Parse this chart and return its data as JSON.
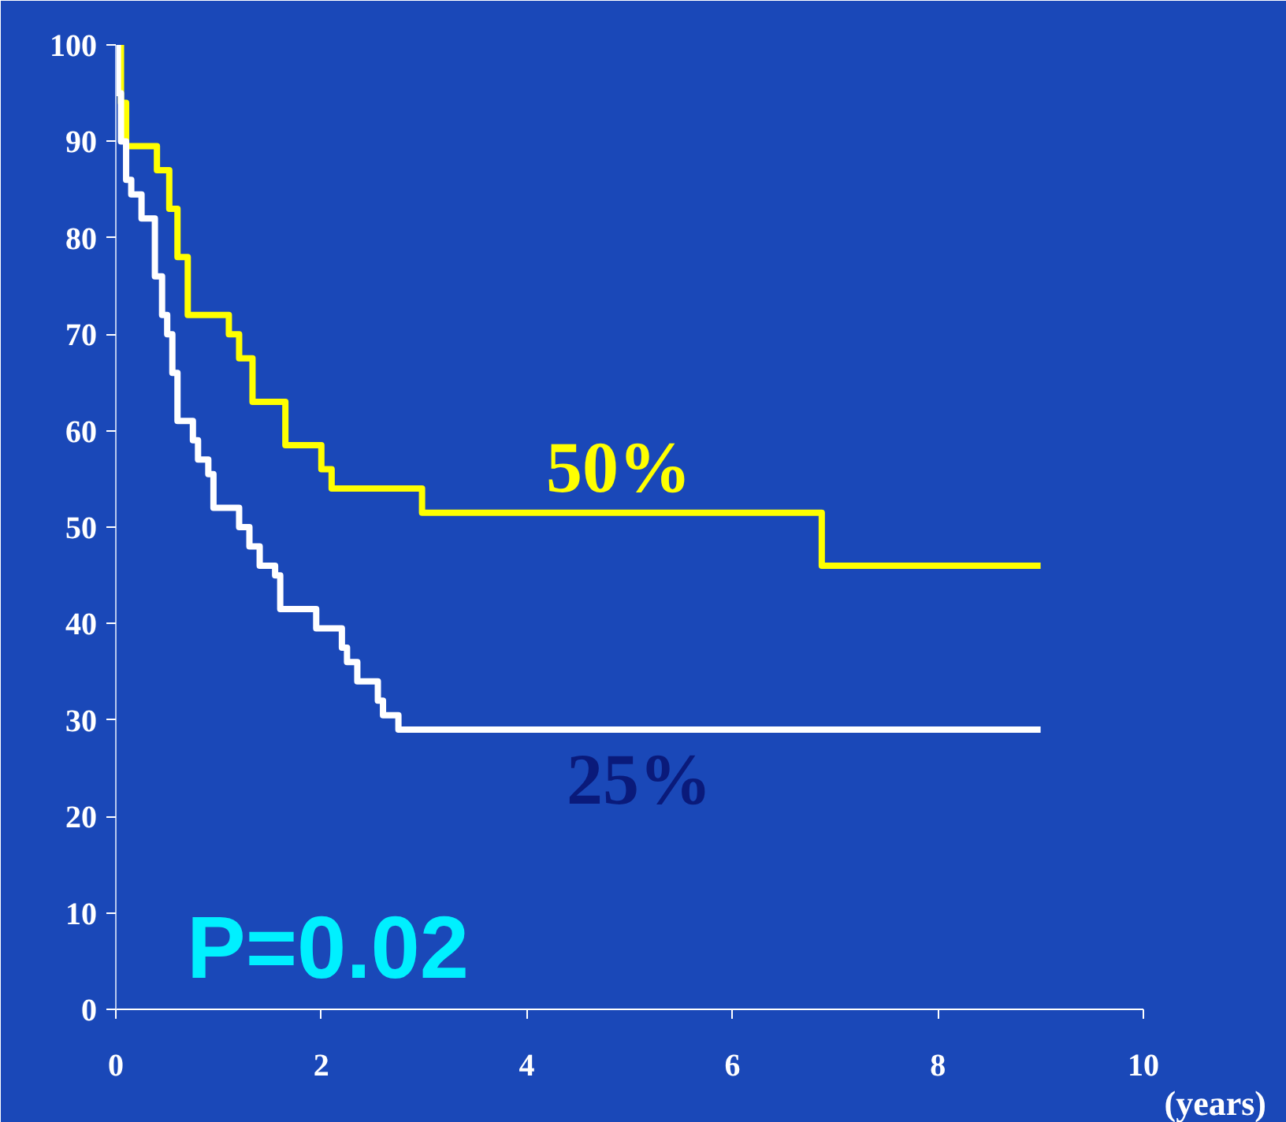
{
  "chart_data": {
    "type": "step",
    "xlabel": "(years)",
    "xlim": [
      0,
      10
    ],
    "ylim": [
      0,
      100
    ],
    "xticks": [
      0,
      2,
      4,
      6,
      8,
      10
    ],
    "yticks": [
      0,
      10,
      20,
      30,
      40,
      50,
      60,
      70,
      80,
      90,
      100
    ],
    "grid": false,
    "line_style": "solid",
    "marker": "none",
    "series": [
      {
        "color": "#ffff00",
        "x": [
          0,
          0.05,
          0.1,
          0.4,
          0.52,
          0.6,
          0.7,
          1.1,
          1.2,
          1.33,
          1.65,
          2.0,
          2.1,
          2.98,
          6.87,
          9.0
        ],
        "values": [
          100,
          94,
          89.5,
          87,
          83,
          78,
          72,
          70,
          67.5,
          63,
          58.5,
          56,
          54,
          51.5,
          46,
          46
        ]
      },
      {
        "color": "#ffffff",
        "x": [
          0,
          0.02,
          0.05,
          0.1,
          0.15,
          0.25,
          0.38,
          0.45,
          0.5,
          0.55,
          0.6,
          0.75,
          0.8,
          0.9,
          0.95,
          1.2,
          1.3,
          1.4,
          1.55,
          1.6,
          1.95,
          2.2,
          2.25,
          2.35,
          2.55,
          2.6,
          2.75,
          9.0
        ],
        "values": [
          100,
          95,
          90,
          86,
          84.5,
          82,
          76,
          72,
          70,
          66,
          61,
          59,
          57,
          55.5,
          52,
          50,
          48,
          46,
          45,
          41.5,
          39.5,
          37.5,
          36,
          34,
          32,
          30.5,
          29,
          29
        ]
      }
    ],
    "annotations": [
      "50%",
      "25%",
      "P=0.02"
    ]
  }
}
